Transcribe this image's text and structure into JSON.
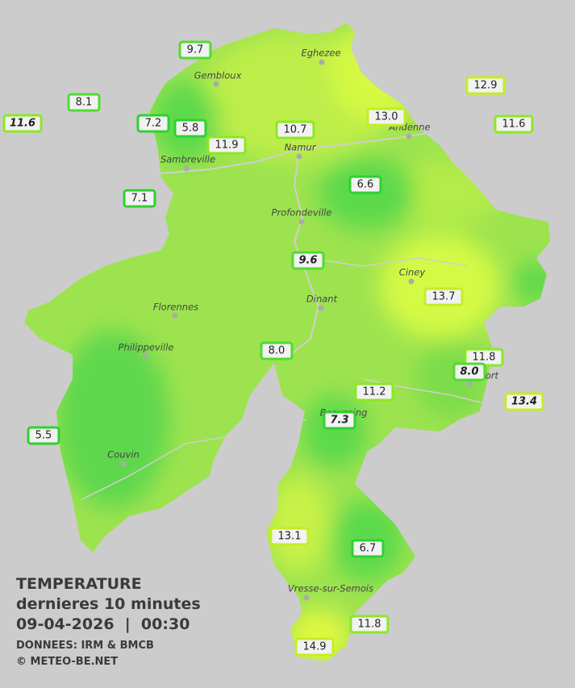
{
  "title": "TEMPERATURE",
  "subtitle": "dernieres 10 minutes",
  "datetime": "09-04-2026  |  00:30",
  "source": "DONNEES: IRM & BMCB",
  "credit": "© METEO-BE.NET",
  "towns": [
    "Eghezee",
    "Gembloux",
    "Andenne",
    "Namur",
    "Sambreville",
    "Profondeville",
    "Ciney",
    "Florennes",
    "Dinant",
    "Philippeville",
    "Rochefort",
    "Beauraing",
    "Couvin",
    "Vresse-sur-Semois"
  ],
  "stations": [
    {
      "label": "9.7"
    },
    {
      "label": "8.1"
    },
    {
      "label": "11.6",
      "italic": true
    },
    {
      "label": "7.2"
    },
    {
      "label": "5.8"
    },
    {
      "label": "11.9"
    },
    {
      "label": "10.7"
    },
    {
      "label": "13.0"
    },
    {
      "label": "12.9"
    },
    {
      "label": "11.6"
    },
    {
      "label": "7.1"
    },
    {
      "label": "6.6"
    },
    {
      "label": "9.6",
      "italic": true
    },
    {
      "label": "13.7"
    },
    {
      "label": "8.0"
    },
    {
      "label": "11.8"
    },
    {
      "label": "8.0",
      "italic": true
    },
    {
      "label": "13.4",
      "italic": true
    },
    {
      "label": "11.2"
    },
    {
      "label": "7.3",
      "italic": true
    },
    {
      "label": "5.5"
    },
    {
      "label": "13.1"
    },
    {
      "label": "6.7"
    },
    {
      "label": "11.8"
    },
    {
      "label": "14.9"
    }
  ]
}
